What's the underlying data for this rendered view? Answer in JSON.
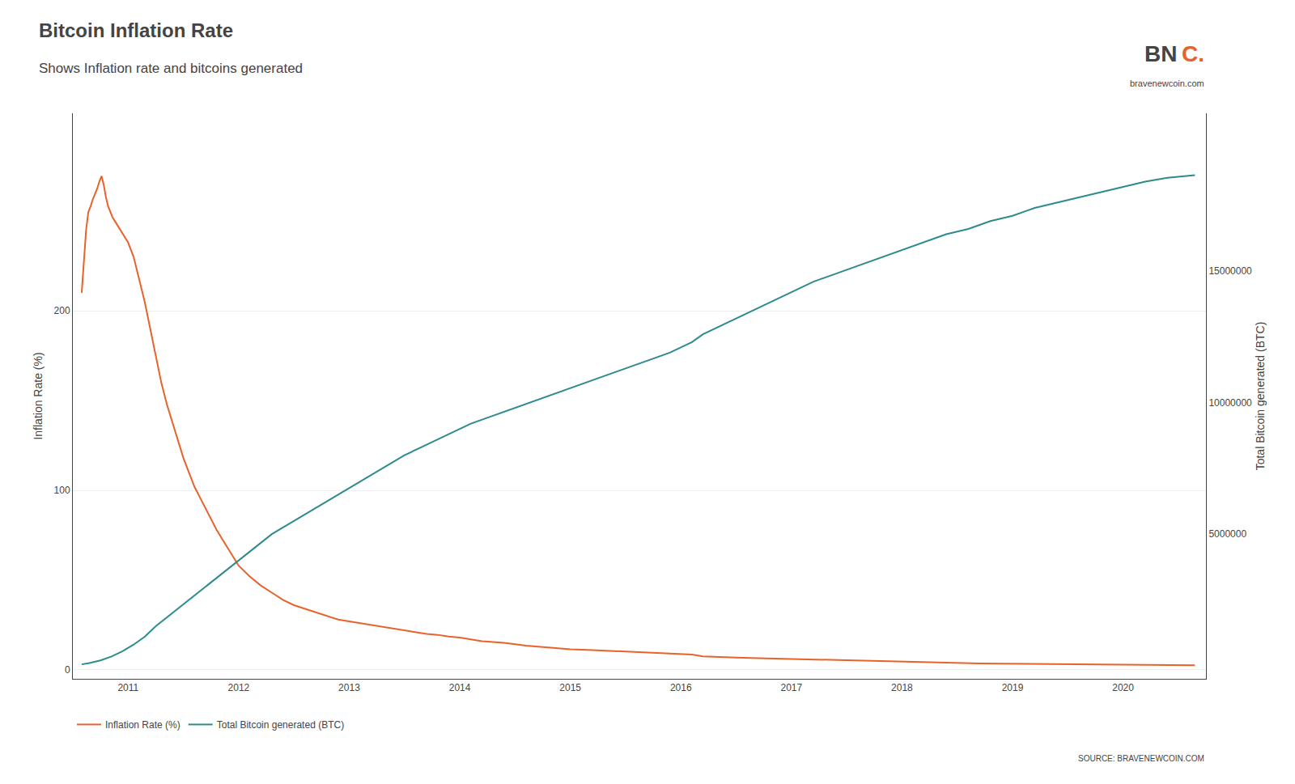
{
  "chart_data": {
    "type": "line",
    "title": "Bitcoin Inflation Rate",
    "subtitle": "Shows Inflation rate and bitcoins generated",
    "annotations": [
      "BN",
      "C.",
      "bravenewcoin.com",
      "SOURCE: BRAVENEWCOIN.COM"
    ],
    "ylabel": "Inflation Rate (%)",
    "y2label": "Total Bitcoin generated (BTC)",
    "xlim": [
      2010.5,
      2020.75
    ],
    "xticks": [
      2011,
      2012,
      2013,
      2014,
      2015,
      2016,
      2017,
      2018,
      2019,
      2020
    ],
    "ylim": [
      -5,
      310
    ],
    "yticks": [
      0,
      100,
      200
    ],
    "y2lim": [
      -500000,
      21000000
    ],
    "y2ticks": [
      5000000,
      10000000,
      15000000
    ],
    "grid": true,
    "legend": "lower left",
    "series": [
      {
        "name": "Inflation Rate (%)",
        "color": "#E8622A",
        "x": [
          2010.58,
          2010.6,
          2010.62,
          2010.64,
          2010.66,
          2010.68,
          2010.7,
          2010.72,
          2010.74,
          2010.76,
          2010.78,
          2010.8,
          2010.82,
          2010.84,
          2010.86,
          2010.88,
          2010.9,
          2010.92,
          2010.95,
          2011.0,
          2011.05,
          2011.1,
          2011.15,
          2011.2,
          2011.25,
          2011.3,
          2011.35,
          2011.4,
          2011.45,
          2011.5,
          2011.55,
          2011.6,
          2011.65,
          2011.7,
          2011.75,
          2011.8,
          2011.85,
          2011.9,
          2011.95,
          2012.0,
          2012.1,
          2012.2,
          2012.3,
          2012.4,
          2012.5,
          2012.6,
          2012.7,
          2012.8,
          2012.9,
          2013.0,
          2013.1,
          2013.2,
          2013.3,
          2013.4,
          2013.5,
          2013.6,
          2013.7,
          2013.8,
          2013.9,
          2014.0,
          2014.2,
          2014.4,
          2014.6,
          2014.8,
          2015.0,
          2015.2,
          2015.4,
          2015.6,
          2015.8,
          2016.0,
          2016.1,
          2016.2,
          2016.3,
          2016.5,
          2016.7,
          2016.9,
          2017.1,
          2017.3,
          2017.5,
          2017.7,
          2017.9,
          2018.1,
          2018.3,
          2018.5,
          2018.7,
          2018.9,
          2019.1,
          2019.3,
          2019.5,
          2019.7,
          2019.9,
          2020.1,
          2020.3,
          2020.5,
          2020.65
        ],
        "values": [
          210,
          230,
          245,
          255,
          258,
          262,
          265,
          268,
          272,
          275,
          270,
          263,
          258,
          255,
          252,
          250,
          248,
          246,
          243,
          238,
          230,
          218,
          205,
          190,
          175,
          160,
          148,
          138,
          128,
          118,
          110,
          102,
          96,
          90,
          84,
          78,
          73,
          68,
          63,
          58,
          52,
          47,
          43,
          39,
          36,
          34,
          32,
          30,
          28,
          27,
          26,
          25,
          24,
          23,
          22,
          21,
          20,
          19.5,
          18.5,
          18,
          16,
          15,
          13.5,
          12.5,
          11.5,
          11,
          10.5,
          10,
          9.5,
          9,
          8.5,
          7.5,
          7.2,
          6.8,
          6.5,
          6.2,
          6.0,
          5.5,
          5.2,
          4.8,
          4.5,
          4.2,
          4.0,
          3.8,
          3.6,
          3.4,
          3.3,
          3.2,
          3.1,
          3.0,
          2.9,
          2.8,
          2.7,
          2.65,
          2.6
        ]
      },
      {
        "name": "Total Bitcoin generated (BTC)",
        "color": "#2E8B8B",
        "axis": "y2",
        "x": [
          2010.58,
          2010.65,
          2010.75,
          2010.85,
          2010.95,
          2011.05,
          2011.15,
          2011.25,
          2011.4,
          2011.55,
          2011.7,
          2011.85,
          2012.0,
          2012.15,
          2012.3,
          2012.5,
          2012.7,
          2012.9,
          2013.1,
          2013.3,
          2013.5,
          2013.7,
          2013.9,
          2014.1,
          2014.3,
          2014.5,
          2014.7,
          2014.9,
          2015.1,
          2015.3,
          2015.5,
          2015.7,
          2015.9,
          2016.0,
          2016.1,
          2016.2,
          2016.4,
          2016.6,
          2016.8,
          2017.0,
          2017.2,
          2017.4,
          2017.6,
          2017.8,
          2018.0,
          2018.2,
          2018.4,
          2018.6,
          2018.8,
          2019.0,
          2019.2,
          2019.4,
          2019.6,
          2019.8,
          2020.0,
          2020.2,
          2020.4,
          2020.65
        ],
        "values": [
          50000,
          100000,
          200000,
          350000,
          550000,
          800000,
          1100000,
          1500000,
          2000000,
          2500000,
          3000000,
          3500000,
          4000000,
          4500000,
          5000000,
          5500000,
          6000000,
          6500000,
          7000000,
          7500000,
          8000000,
          8400000,
          8800000,
          9200000,
          9500000,
          9800000,
          10100000,
          10400000,
          10700000,
          11000000,
          11300000,
          11600000,
          11900000,
          12100000,
          12300000,
          12600000,
          13000000,
          13400000,
          13800000,
          14200000,
          14600000,
          14900000,
          15200000,
          15500000,
          15800000,
          16100000,
          16400000,
          16600000,
          16900000,
          17100000,
          17400000,
          17600000,
          17800000,
          18000000,
          18200000,
          18400000,
          18550000,
          18650000
        ]
      }
    ]
  }
}
